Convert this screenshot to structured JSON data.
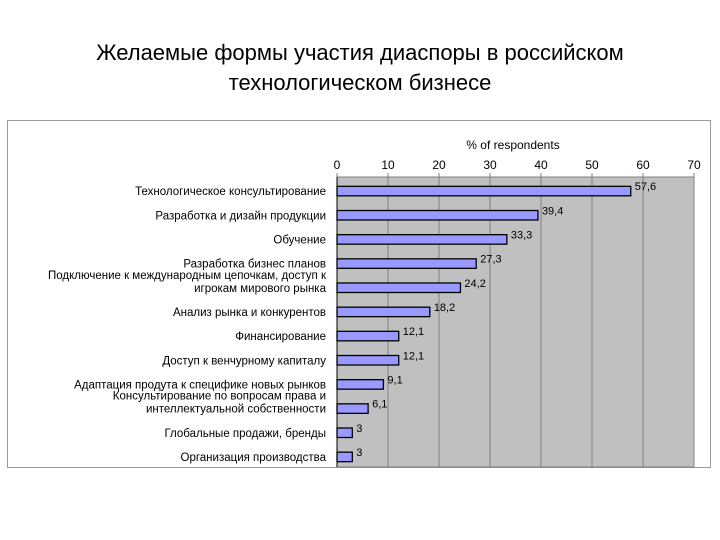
{
  "slide": {
    "title_line1": "Желаемые формы участия диаспоры в российском",
    "title_line2": "технологическом бизнесе"
  },
  "colors": {
    "bar_fill": "#9999ff",
    "bar_stroke": "#000000",
    "plot_background": "#c0c0c0",
    "gridline": "#808080"
  },
  "chart_data": {
    "type": "bar",
    "orientation": "horizontal",
    "title": "% of respondents",
    "xlim": [
      0,
      70
    ],
    "ticks": [
      0,
      10,
      20,
      30,
      40,
      50,
      60,
      70
    ],
    "grid": true,
    "categories": [
      [
        "Технологическое консультирование"
      ],
      [
        "Разработка и дизайн продукции"
      ],
      [
        "Обучение"
      ],
      [
        "Разработка бизнес планов"
      ],
      [
        "Подключение к международным цепочкам, доступ к",
        "игрокам мирового рынка"
      ],
      [
        "Анализ рынка и конкурентов"
      ],
      [
        "Финансирование"
      ],
      [
        "Доступ к венчурному капиталу"
      ],
      [
        "Адаптация продута к специфике новых рынков"
      ],
      [
        "Консультирование по вопросам права и",
        "интеллектуальной собственности"
      ],
      [
        "Глобальные продажи, бренды"
      ],
      [
        "Организация производства"
      ]
    ],
    "values": [
      57.6,
      39.4,
      33.3,
      27.3,
      24.2,
      18.2,
      12.1,
      12.1,
      9.1,
      6.1,
      3,
      3
    ],
    "value_labels": [
      "57,6",
      "39,4",
      "33,3",
      "27,3",
      "24,2",
      "18,2",
      "12,1",
      "12,1",
      "9,1",
      "6,1",
      "3",
      "3"
    ]
  }
}
